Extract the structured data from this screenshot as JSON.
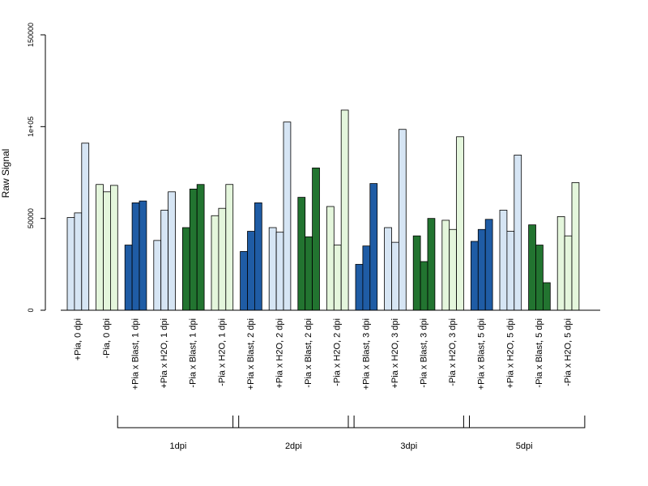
{
  "colors": {
    "light_blue": "#d6e5f4",
    "light_green": "#e4f6dc",
    "dark_blue": "#1f5ca5",
    "dark_green": "#227430",
    "outline": "#000000"
  },
  "chart_data": {
    "type": "bar",
    "ylabel": "Raw Signal",
    "ylim": [
      0,
      150000
    ],
    "yticks": [
      {
        "value": 0,
        "label": "0"
      },
      {
        "value": 50000,
        "label": "50000"
      },
      {
        "value": 100000,
        "label": "1e+05"
      },
      {
        "value": 150000,
        "label": "150000"
      }
    ],
    "grid": false,
    "groups": [
      {
        "label": "+Pia, 0 dpi",
        "color": "light_blue",
        "values": [
          50500,
          53000,
          91000
        ]
      },
      {
        "label": "-Pia, 0 dpi",
        "color": "light_green",
        "values": [
          68500,
          64500,
          68000
        ]
      },
      {
        "label": "+Pia x Blast, 1 dpi",
        "color": "dark_blue",
        "values": [
          35500,
          58500,
          59500
        ]
      },
      {
        "label": "+Pia x H2O, 1 dpi",
        "color": "light_blue",
        "values": [
          38000,
          54500,
          64500
        ]
      },
      {
        "label": "-Pia x Blast, 1 dpi",
        "color": "dark_green",
        "values": [
          45000,
          66000,
          68500
        ]
      },
      {
        "label": "-Pia x H2O, 1 dpi",
        "color": "light_green",
        "values": [
          51500,
          55500,
          68500
        ]
      },
      {
        "label": "+Pia x Blast, 2 dpi",
        "color": "dark_blue",
        "values": [
          32000,
          43000,
          58500
        ]
      },
      {
        "label": "+Pia x H2O, 2 dpi",
        "color": "light_blue",
        "values": [
          45000,
          42500,
          102500
        ]
      },
      {
        "label": "-Pia x Blast, 2 dpi",
        "color": "dark_green",
        "values": [
          61500,
          40000,
          77500
        ]
      },
      {
        "label": "-Pia x H2O, 2 dpi",
        "color": "light_green",
        "values": [
          56500,
          35500,
          109000
        ]
      },
      {
        "label": "+Pia x Blast, 3 dpi",
        "color": "dark_blue",
        "values": [
          25000,
          35000,
          69000
        ]
      },
      {
        "label": "+Pia x H2O, 3 dpi",
        "color": "light_blue",
        "values": [
          45000,
          37000,
          98500
        ]
      },
      {
        "label": "-Pia x Blast, 3 dpi",
        "color": "dark_green",
        "values": [
          40500,
          26500,
          50000
        ]
      },
      {
        "label": "-Pia x H2O, 3 dpi",
        "color": "light_green",
        "values": [
          49000,
          44000,
          94500
        ]
      },
      {
        "label": "+Pia x Blast, 5 dpi",
        "color": "dark_blue",
        "values": [
          37500,
          44000,
          49500
        ]
      },
      {
        "label": "+Pia x H2O, 5 dpi",
        "color": "light_blue",
        "values": [
          54500,
          43000,
          84500
        ]
      },
      {
        "label": "-Pia x Blast, 5 dpi",
        "color": "dark_green",
        "values": [
          46500,
          35500,
          15000
        ]
      },
      {
        "label": "-Pia x H2O, 5 dpi",
        "color": "light_green",
        "values": [
          51000,
          40500,
          69500
        ]
      }
    ],
    "brackets": [
      {
        "label": "1dpi",
        "first_group": 2,
        "last_group": 5
      },
      {
        "label": "2dpi",
        "first_group": 6,
        "last_group": 9
      },
      {
        "label": "3dpi",
        "first_group": 10,
        "last_group": 13
      },
      {
        "label": "5dpi",
        "first_group": 14,
        "last_group": 17
      }
    ]
  }
}
